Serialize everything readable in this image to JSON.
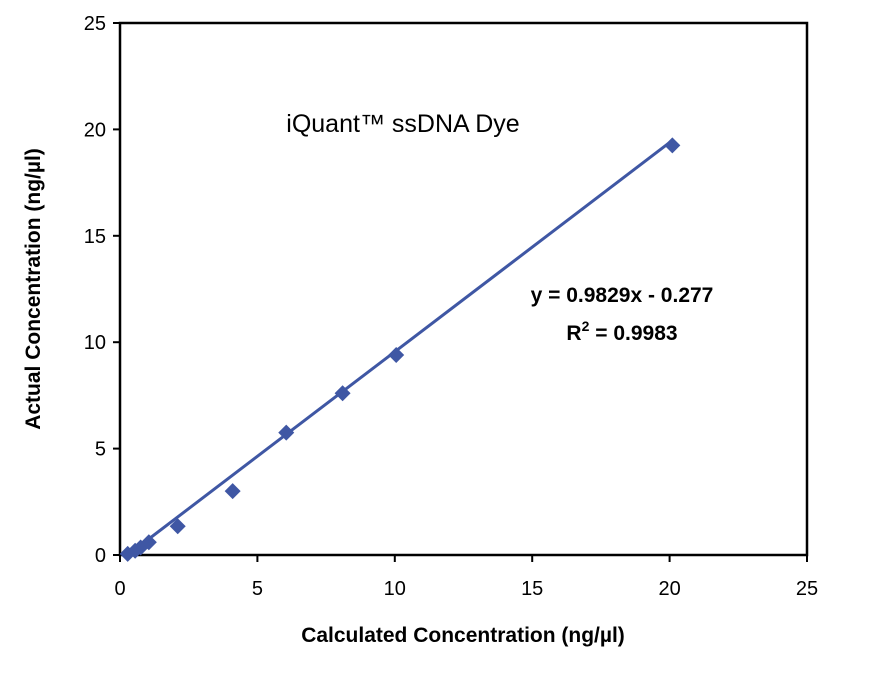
{
  "chart_data": {
    "type": "scatter",
    "title": "iQuant™ ssDNA Dye",
    "xlabel": "Calculated Concentration (ng/µl)",
    "ylabel": "Actual Concentration (ng/µl)",
    "xlim": [
      0,
      25
    ],
    "ylim": [
      0,
      25
    ],
    "xticks": [
      "0",
      "5",
      "10",
      "15",
      "20",
      "25"
    ],
    "yticks": [
      "0",
      "5",
      "10",
      "15",
      "20",
      "25"
    ],
    "grid": false,
    "legend": "none",
    "series": [
      {
        "marker": "diamond",
        "color": "#3f57a4",
        "points": [
          {
            "x": 0.28,
            "y": 0.05
          },
          {
            "x": 0.55,
            "y": 0.2
          },
          {
            "x": 0.75,
            "y": 0.35
          },
          {
            "x": 1.05,
            "y": 0.6
          },
          {
            "x": 2.1,
            "y": 1.35
          },
          {
            "x": 4.1,
            "y": 3.0
          },
          {
            "x": 6.05,
            "y": 5.75
          },
          {
            "x": 8.1,
            "y": 7.6
          },
          {
            "x": 10.05,
            "y": 9.4
          },
          {
            "x": 20.1,
            "y": 19.25
          }
        ]
      }
    ],
    "trendline": {
      "type": "linear",
      "slope": 0.9829,
      "intercept": -0.277,
      "x_range": [
        0.3,
        20.1
      ],
      "color": "#3f57a4"
    },
    "annotations": {
      "equation": "y = 0.9829x - 0.277",
      "r2_prefix": "R",
      "r2_sup": "2",
      "r2_value": " = 0.9983"
    }
  }
}
